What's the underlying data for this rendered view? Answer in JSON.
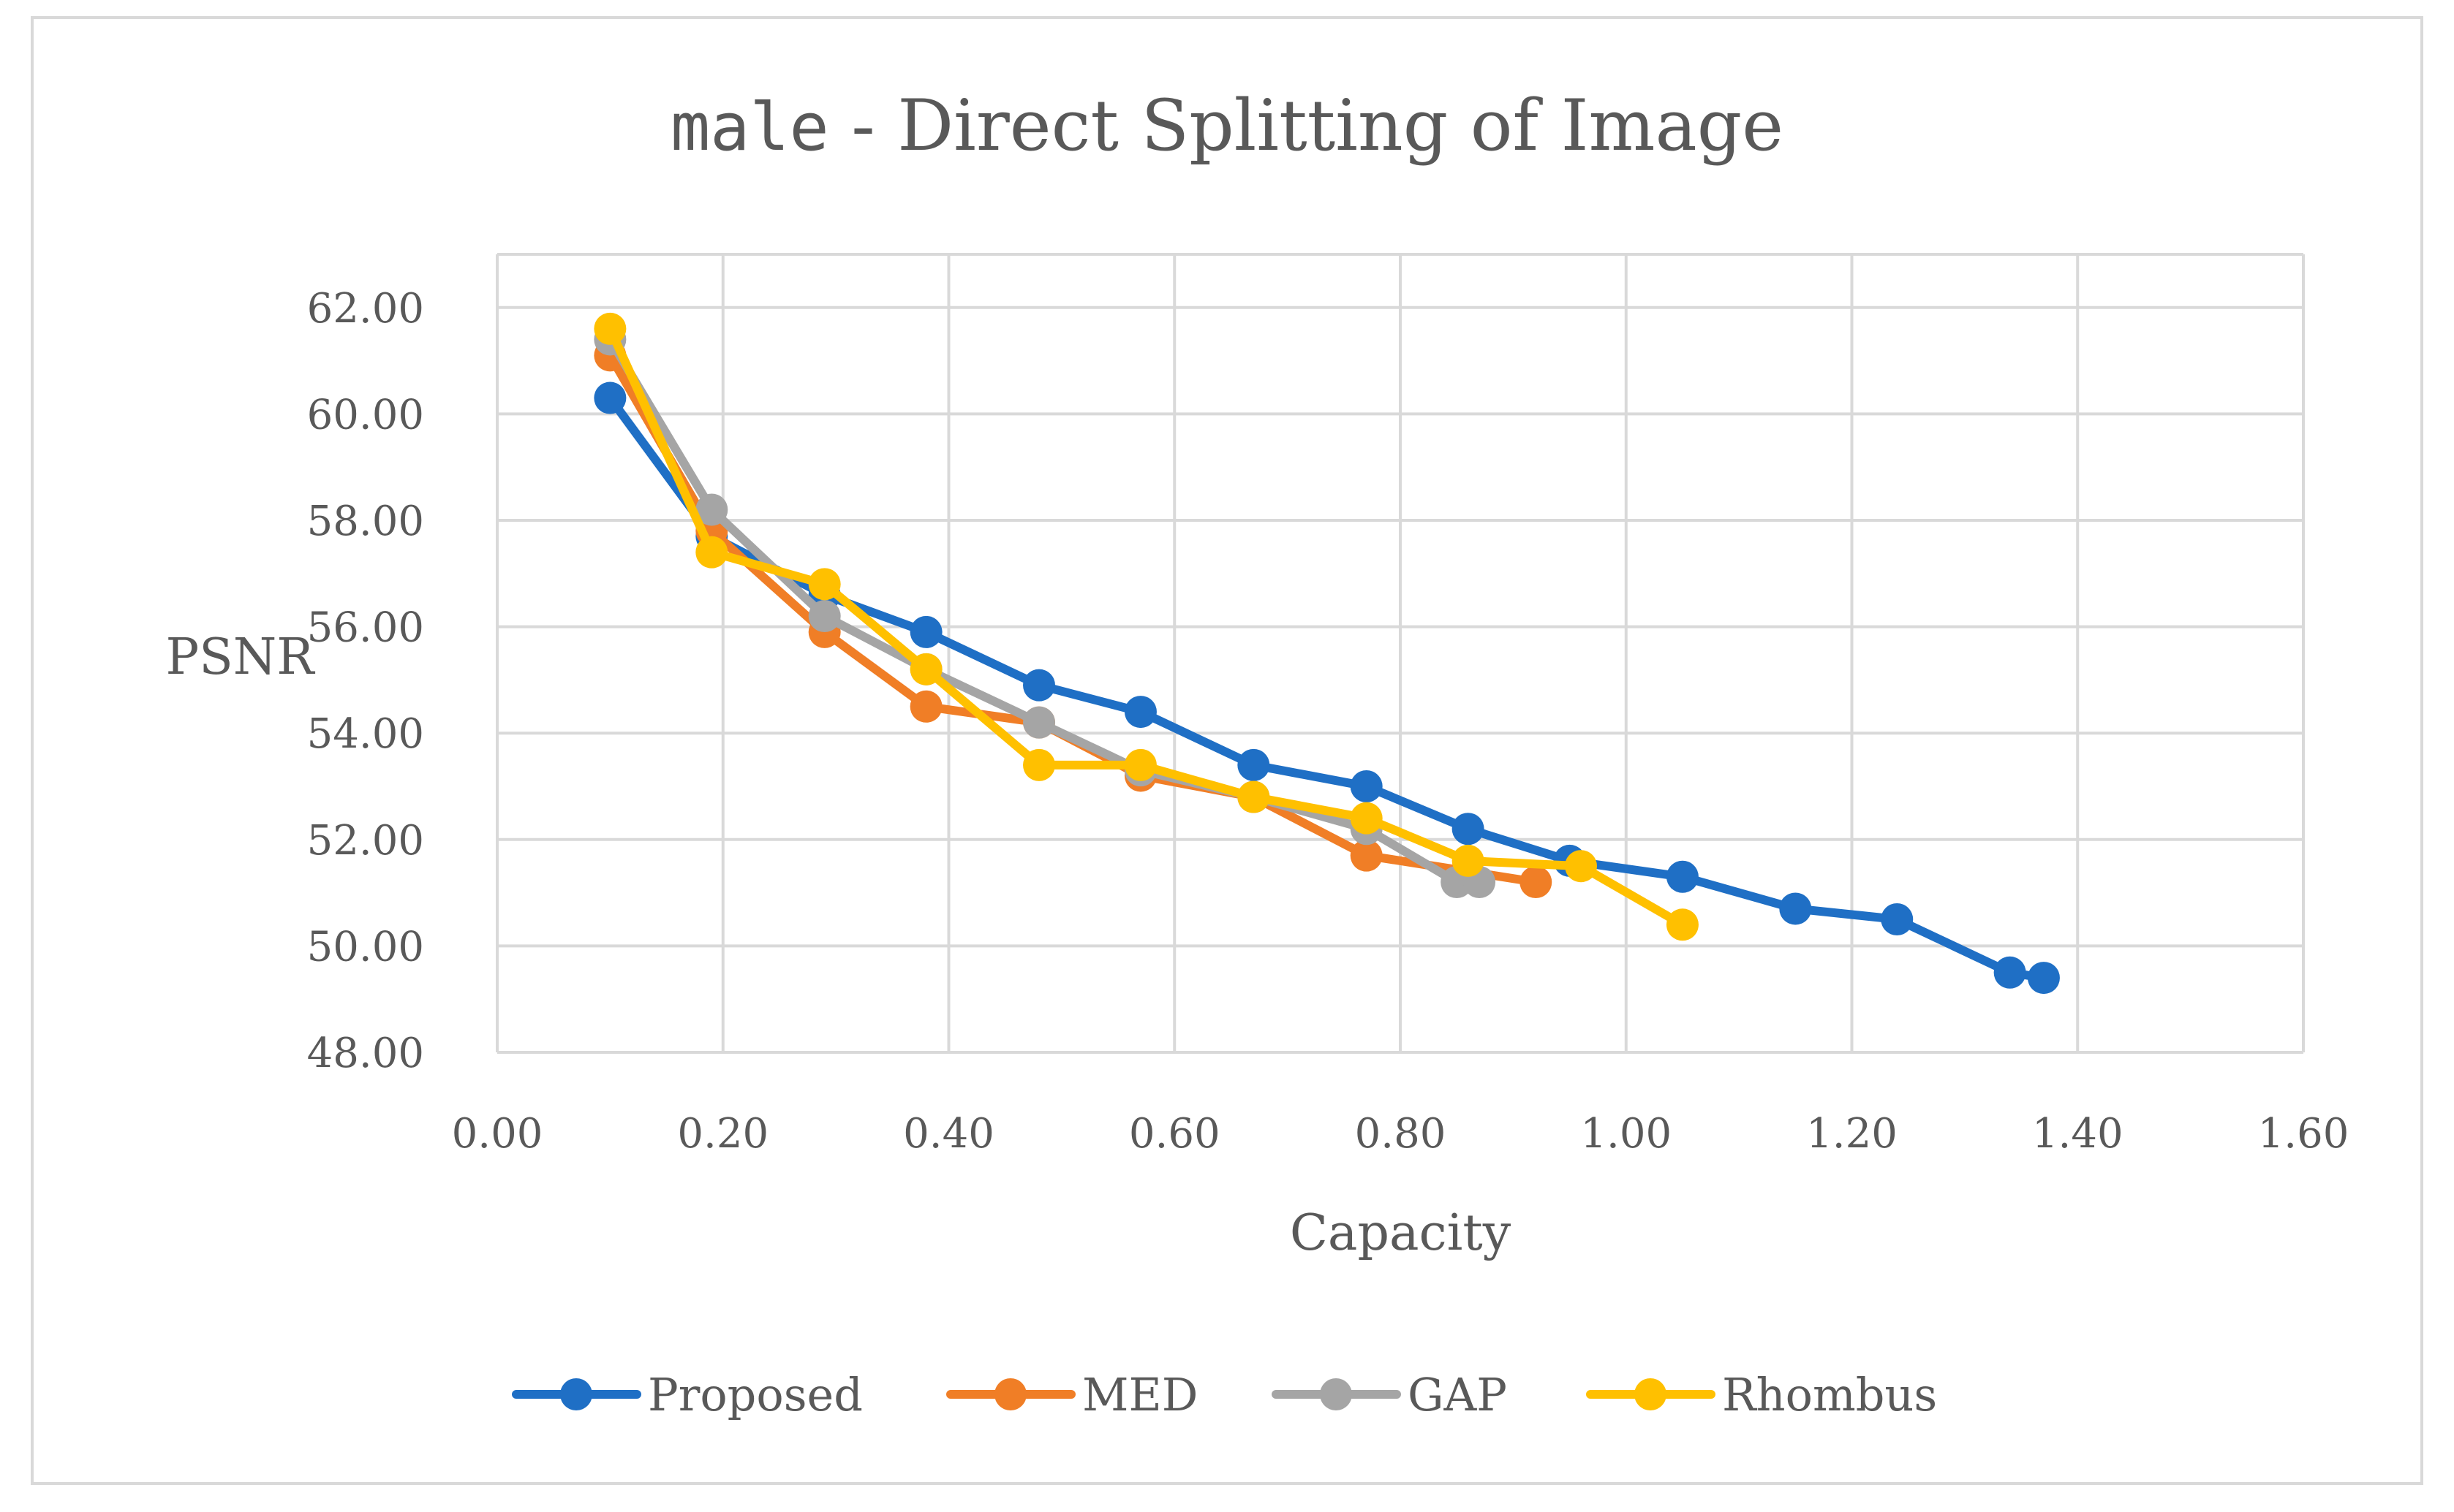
{
  "chart_data": {
    "type": "line",
    "title": {
      "mono": "male",
      "rest": " - Direct Splitting of Image"
    },
    "xlabel": "Capacity",
    "ylabel": "PSNR",
    "xlim": [
      0,
      1.6
    ],
    "ylim": [
      48,
      63
    ],
    "x_ticks": [
      "0.00",
      "0.20",
      "0.40",
      "0.60",
      "0.80",
      "1.00",
      "1.20",
      "1.40",
      "1.60"
    ],
    "y_ticks": [
      "48.00",
      "50.00",
      "52.00",
      "54.00",
      "56.00",
      "58.00",
      "60.00",
      "62.00"
    ],
    "grid": true,
    "legend_position": "bottom",
    "series": [
      {
        "name": "Proposed",
        "color": "#1F6FC5",
        "points": [
          [
            0.1,
            60.3
          ],
          [
            0.19,
            57.7
          ],
          [
            0.29,
            56.6
          ],
          [
            0.38,
            55.9
          ],
          [
            0.48,
            54.9
          ],
          [
            0.57,
            54.4
          ],
          [
            0.67,
            53.4
          ],
          [
            0.77,
            53.0
          ],
          [
            0.86,
            52.2
          ],
          [
            0.95,
            51.6
          ],
          [
            1.05,
            51.3
          ],
          [
            1.15,
            50.7
          ],
          [
            1.24,
            50.5
          ],
          [
            1.34,
            49.5
          ],
          [
            1.37,
            49.4
          ]
        ]
      },
      {
        "name": "MED",
        "color": "#F07E26",
        "points": [
          [
            0.1,
            61.1
          ],
          [
            0.19,
            57.8
          ],
          [
            0.29,
            55.9
          ],
          [
            0.38,
            54.5
          ],
          [
            0.48,
            54.2
          ],
          [
            0.57,
            53.2
          ],
          [
            0.67,
            52.8
          ],
          [
            0.77,
            51.7
          ],
          [
            0.86,
            51.4
          ],
          [
            0.92,
            51.2
          ]
        ]
      },
      {
        "name": "GAP",
        "color": "#A5A5A5",
        "points": [
          [
            0.1,
            61.4
          ],
          [
            0.19,
            58.2
          ],
          [
            0.29,
            56.2
          ],
          [
            0.38,
            55.2
          ],
          [
            0.48,
            54.2
          ],
          [
            0.57,
            53.3
          ],
          [
            0.67,
            52.8
          ],
          [
            0.77,
            52.2
          ],
          [
            0.85,
            51.2
          ],
          [
            0.87,
            51.2
          ]
        ]
      },
      {
        "name": "Rhombus",
        "color": "#FFC000",
        "points": [
          [
            0.1,
            61.6
          ],
          [
            0.19,
            57.4
          ],
          [
            0.29,
            56.8
          ],
          [
            0.38,
            55.2
          ],
          [
            0.48,
            53.4
          ],
          [
            0.57,
            53.4
          ],
          [
            0.67,
            52.8
          ],
          [
            0.77,
            52.4
          ],
          [
            0.86,
            51.6
          ],
          [
            0.96,
            51.5
          ],
          [
            1.05,
            50.4
          ]
        ]
      }
    ]
  }
}
